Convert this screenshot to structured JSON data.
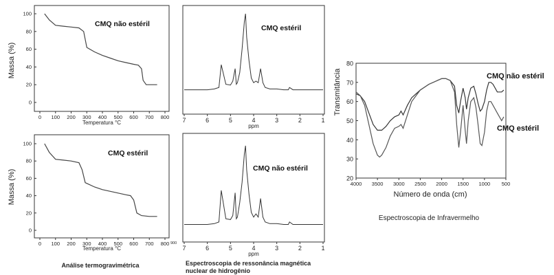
{
  "chart_data": [
    {
      "type": "line",
      "panel": "tga_top",
      "annotation": "CMQ não estéril",
      "ylabel": "Massa (%)",
      "xlabel": "Temperatura °C",
      "xlim": [
        0,
        800
      ],
      "ylim": [
        0,
        100
      ],
      "x_ticks": [
        "0",
        "100",
        "200",
        "300",
        "400",
        "500",
        "600",
        "700",
        "800"
      ],
      "y_ticks": [
        "0",
        "20",
        "40",
        "60",
        "80",
        "100"
      ],
      "series": [
        {
          "x": [
            30,
            60,
            100,
            150,
            200,
            250,
            280,
            300,
            350,
            400,
            450,
            500,
            550,
            600,
            630,
            650,
            660,
            680,
            700,
            750
          ],
          "y": [
            100,
            93,
            87,
            86,
            85,
            84,
            80,
            62,
            57,
            53,
            50,
            47,
            45,
            43,
            42,
            38,
            25,
            20,
            20,
            20
          ]
        }
      ]
    },
    {
      "type": "line",
      "panel": "nmr_top",
      "annotation": "CMQ estéril",
      "xlabel": "ppm",
      "xlim": [
        7,
        1
      ],
      "x_ticks": [
        "7",
        "6",
        "5",
        "4",
        "3",
        "2",
        "1"
      ],
      "series": [
        {
          "x": [
            7,
            6.5,
            6,
            5.7,
            5.5,
            5.4,
            5.2,
            5,
            4.9,
            4.8,
            4.75,
            4.7,
            4.6,
            4.5,
            4.4,
            4.35,
            4.3,
            4.2,
            4.1,
            4,
            3.9,
            3.8,
            3.7,
            3.6,
            3.5,
            3.3,
            3,
            2.7,
            2.5,
            2.45,
            2.3,
            2,
            1.5,
            1
          ],
          "y": [
            3,
            3,
            3,
            4,
            6,
            35,
            10,
            9,
            14,
            30,
            10,
            12,
            25,
            55,
            90,
            100,
            70,
            40,
            18,
            12,
            14,
            12,
            30,
            12,
            6,
            4,
            4,
            3,
            3,
            6,
            3,
            3,
            3,
            3
          ]
        }
      ]
    },
    {
      "type": "line",
      "panel": "tga_bottom",
      "annotation": "CMQ estéril",
      "ylabel": "Massa (%)",
      "xlabel": "Temperatura °C",
      "xlim": [
        0,
        800
      ],
      "ylim": [
        0,
        100
      ],
      "x_ticks": [
        "0",
        "100",
        "200",
        "300",
        "400",
        "500",
        "600",
        "700",
        "800"
      ],
      "x_extra_tick": "900",
      "y_ticks": [
        "0",
        "20",
        "40",
        "60",
        "80",
        "100"
      ],
      "series": [
        {
          "x": [
            30,
            60,
            100,
            150,
            200,
            250,
            270,
            290,
            350,
            400,
            450,
            500,
            550,
            580,
            600,
            620,
            650,
            700,
            750
          ],
          "y": [
            100,
            90,
            82,
            81,
            80,
            78,
            70,
            55,
            50,
            47,
            45,
            43,
            41,
            40,
            35,
            20,
            17,
            16,
            16
          ]
        }
      ]
    },
    {
      "type": "line",
      "panel": "nmr_bottom",
      "annotation": "CMQ não estéril",
      "xlabel": "ppm",
      "xlim": [
        7,
        1
      ],
      "x_ticks": [
        "7",
        "6",
        "5",
        "4",
        "3",
        "2",
        "1"
      ],
      "series": [
        {
          "x": [
            7,
            6.5,
            6,
            5.7,
            5.5,
            5.4,
            5.2,
            5,
            4.9,
            4.8,
            4.75,
            4.7,
            4.6,
            4.5,
            4.4,
            4.35,
            4.3,
            4.2,
            4.1,
            4,
            3.9,
            3.8,
            3.7,
            3.6,
            3.5,
            3.3,
            3,
            2.7,
            2.5,
            2.45,
            2.3,
            2,
            1.5,
            1
          ],
          "y": [
            3,
            3,
            3,
            4,
            6,
            45,
            10,
            9,
            14,
            42,
            10,
            12,
            30,
            55,
            90,
            100,
            70,
            40,
            18,
            12,
            16,
            12,
            35,
            12,
            6,
            4,
            4,
            3,
            3,
            6,
            3,
            3,
            3,
            3
          ]
        }
      ]
    },
    {
      "type": "line",
      "panel": "ir",
      "ylabel": "Transmitância",
      "xlabel": "Número de onda (cm)",
      "xlim": [
        4000,
        500
      ],
      "ylim": [
        20,
        80
      ],
      "x_ticks": [
        "4000",
        "3500",
        "3000",
        "2500",
        "2000",
        "1500",
        "1000",
        "500"
      ],
      "y_ticks": [
        "20",
        "30",
        "40",
        "50",
        "60",
        "70",
        "80"
      ],
      "series": [
        {
          "name": "CMQ não estéril",
          "x": [
            4000,
            3900,
            3800,
            3700,
            3600,
            3500,
            3400,
            3300,
            3200,
            3100,
            3000,
            2950,
            2900,
            2800,
            2700,
            2500,
            2300,
            2100,
            2000,
            1900,
            1800,
            1700,
            1650,
            1600,
            1560,
            1500,
            1450,
            1420,
            1380,
            1320,
            1250,
            1200,
            1150,
            1100,
            1060,
            1000,
            950,
            900,
            850,
            800,
            700,
            600,
            550
          ],
          "y": [
            64,
            63,
            60,
            54,
            48,
            45,
            45,
            47,
            50,
            52,
            53,
            55,
            53,
            58,
            62,
            66,
            69,
            71,
            72,
            72,
            71,
            68,
            58,
            54,
            60,
            67,
            62,
            56,
            62,
            67,
            68,
            64,
            59,
            55,
            56,
            60,
            66,
            70,
            70,
            69,
            65,
            65,
            66
          ]
        },
        {
          "name": "CMQ estéril",
          "x": [
            4000,
            3900,
            3800,
            3700,
            3600,
            3500,
            3450,
            3400,
            3300,
            3200,
            3100,
            3000,
            2950,
            2900,
            2800,
            2700,
            2500,
            2300,
            2100,
            2000,
            1900,
            1800,
            1700,
            1650,
            1600,
            1560,
            1500,
            1450,
            1420,
            1380,
            1320,
            1250,
            1200,
            1150,
            1100,
            1060,
            1000,
            950,
            900,
            850,
            800,
            700,
            600,
            550
          ],
          "y": [
            65,
            63,
            58,
            48,
            38,
            32,
            31,
            32,
            36,
            42,
            46,
            47,
            48,
            46,
            53,
            60,
            66,
            69,
            71,
            72,
            72,
            71,
            65,
            48,
            36,
            44,
            58,
            45,
            38,
            50,
            60,
            62,
            57,
            48,
            38,
            37,
            44,
            55,
            60,
            60,
            58,
            54,
            50,
            52
          ]
        }
      ]
    }
  ],
  "captions": {
    "tga": "Análise termogravimétrica",
    "nmr_line1": "Espectroscopia de ressonância magnética",
    "nmr_line2": "nuclear de hidrogênio",
    "ir": "Espectroscopia de Infravermelho"
  }
}
